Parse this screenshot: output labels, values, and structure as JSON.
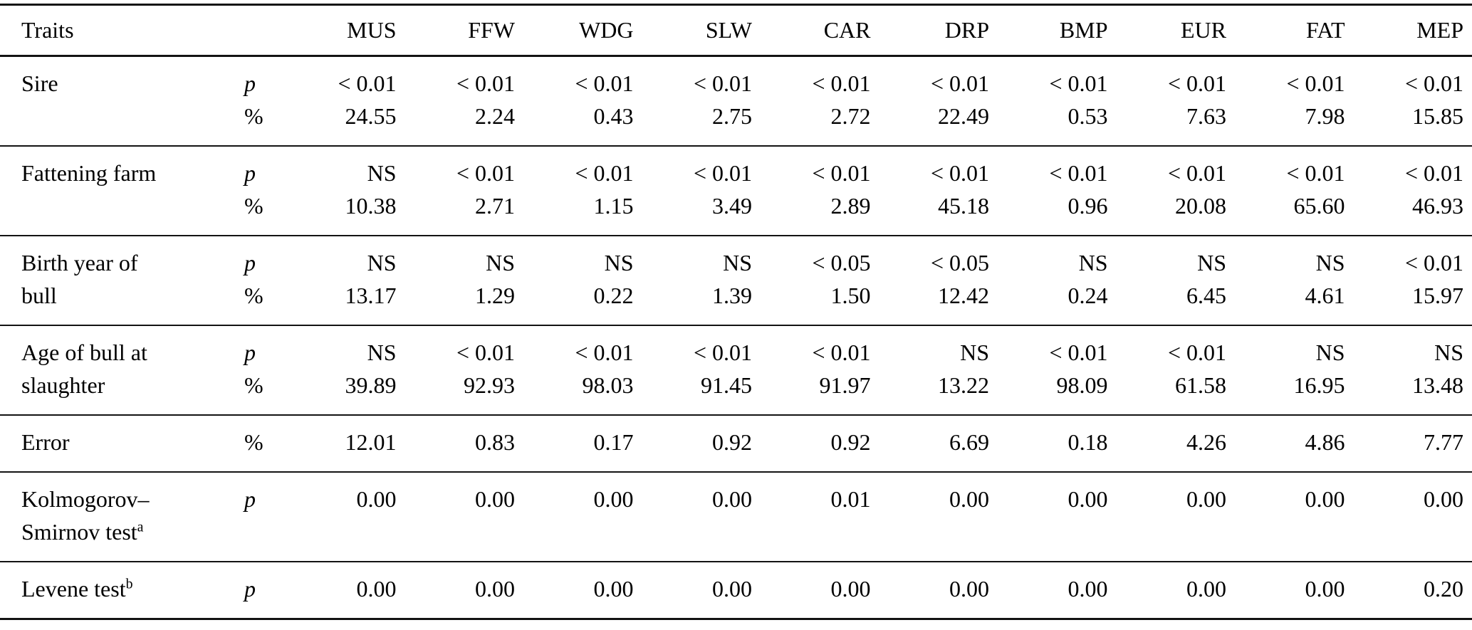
{
  "table": {
    "header": {
      "traits_label": "Traits",
      "columns": [
        "MUS",
        "FFW",
        "WDG",
        "SLW",
        "CAR",
        "DRP",
        "BMP",
        "EUR",
        "FAT",
        "MEP"
      ]
    },
    "groups": [
      {
        "label_lines": [
          "Sire"
        ],
        "rows": [
          {
            "sym": "p",
            "values": [
              "< 0.01",
              "< 0.01",
              "< 0.01",
              "< 0.01",
              "< 0.01",
              "< 0.01",
              "< 0.01",
              "< 0.01",
              "< 0.01",
              "< 0.01"
            ]
          },
          {
            "sym": "%",
            "values": [
              "24.55",
              "2.24",
              "0.43",
              "2.75",
              "2.72",
              "22.49",
              "0.53",
              "7.63",
              "7.98",
              "15.85"
            ]
          }
        ]
      },
      {
        "label_lines": [
          "Fattening farm"
        ],
        "rows": [
          {
            "sym": "p",
            "values": [
              "NS",
              "< 0.01",
              "< 0.01",
              "< 0.01",
              "< 0.01",
              "< 0.01",
              "< 0.01",
              "< 0.01",
              "< 0.01",
              "< 0.01"
            ]
          },
          {
            "sym": "%",
            "values": [
              "10.38",
              "2.71",
              "1.15",
              "3.49",
              "2.89",
              "45.18",
              "0.96",
              "20.08",
              "65.60",
              "46.93"
            ]
          }
        ]
      },
      {
        "label_lines": [
          "Birth year of",
          "bull"
        ],
        "rows": [
          {
            "sym": "p",
            "values": [
              "NS",
              "NS",
              "NS",
              "NS",
              "< 0.05",
              "< 0.05",
              "NS",
              "NS",
              "NS",
              "< 0.01"
            ]
          },
          {
            "sym": "%",
            "values": [
              "13.17",
              "1.29",
              "0.22",
              "1.39",
              "1.50",
              "12.42",
              "0.24",
              "6.45",
              "4.61",
              "15.97"
            ]
          }
        ]
      },
      {
        "label_lines": [
          "Age of bull at",
          "slaughter"
        ],
        "rows": [
          {
            "sym": "p",
            "values": [
              "NS",
              "< 0.01",
              "< 0.01",
              "< 0.01",
              "< 0.01",
              "NS",
              "< 0.01",
              "< 0.01",
              "NS",
              "NS"
            ]
          },
          {
            "sym": "%",
            "values": [
              "39.89",
              "92.93",
              "98.03",
              "91.45",
              "91.97",
              "13.22",
              "98.09",
              "61.58",
              "16.95",
              "13.48"
            ]
          }
        ]
      },
      {
        "label_lines": [
          "Error"
        ],
        "rows": [
          {
            "sym": "%",
            "values": [
              "12.01",
              "0.83",
              "0.17",
              "0.92",
              "0.92",
              "6.69",
              "0.18",
              "4.26",
              "4.86",
              "7.77"
            ]
          }
        ]
      },
      {
        "label_lines": [
          "Kolmogorov–",
          "Smirnov test"
        ],
        "label_sup": "a",
        "rows": [
          {
            "sym": "p",
            "values": [
              "0.00",
              "0.00",
              "0.00",
              "0.00",
              "0.01",
              "0.00",
              "0.00",
              "0.00",
              "0.00",
              "0.00"
            ]
          }
        ]
      },
      {
        "label_lines": [
          "Levene test"
        ],
        "label_sup": "b",
        "rows": [
          {
            "sym": "p",
            "values": [
              "0.00",
              "0.00",
              "0.00",
              "0.00",
              "0.00",
              "0.00",
              "0.00",
              "0.00",
              "0.00",
              "0.20"
            ]
          }
        ]
      }
    ]
  }
}
